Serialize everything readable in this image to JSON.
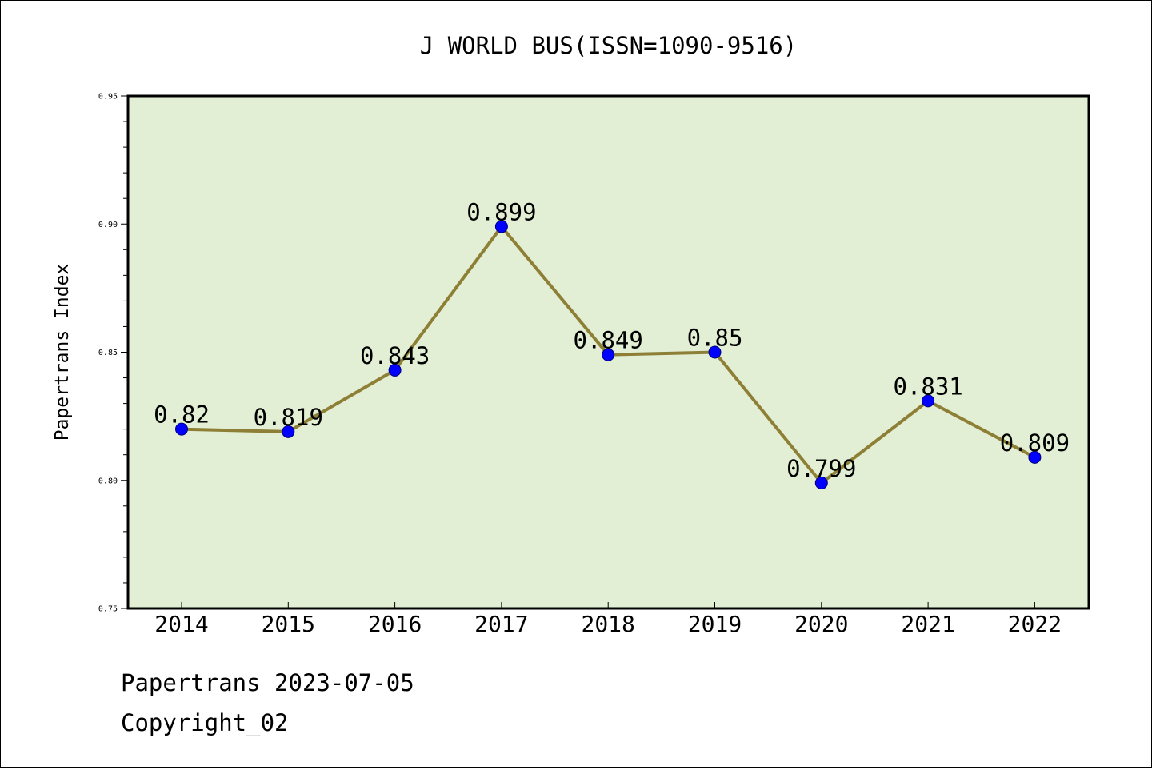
{
  "chart_data": {
    "type": "line",
    "title": "J WORLD BUS(ISSN=1090-9516)",
    "xlabel": "",
    "ylabel": "Papertrans Index",
    "categories": [
      "2014",
      "2015",
      "2016",
      "2017",
      "2018",
      "2019",
      "2020",
      "2021",
      "2022"
    ],
    "series": [
      {
        "values": [
          0.82,
          0.819,
          0.843,
          0.899,
          0.849,
          0.85,
          0.799,
          0.831,
          0.809
        ]
      }
    ],
    "data_labels": [
      "0.82",
      "0.819",
      "0.843",
      "0.899",
      "0.849",
      "0.85",
      "0.799",
      "0.831",
      "0.809"
    ],
    "ylim": [
      0.75,
      0.95
    ],
    "yticks": [
      "0.75",
      "0.80",
      "0.85",
      "0.90",
      "0.95"
    ],
    "grid": false,
    "colors": {
      "plot_background": "#e2efd4",
      "line": "#8e7f36",
      "marker": "#0000ff",
      "axes": "#000000"
    }
  },
  "footer": {
    "date_line": "Papertrans 2023-07-05",
    "copyright": "Copyright_02"
  }
}
